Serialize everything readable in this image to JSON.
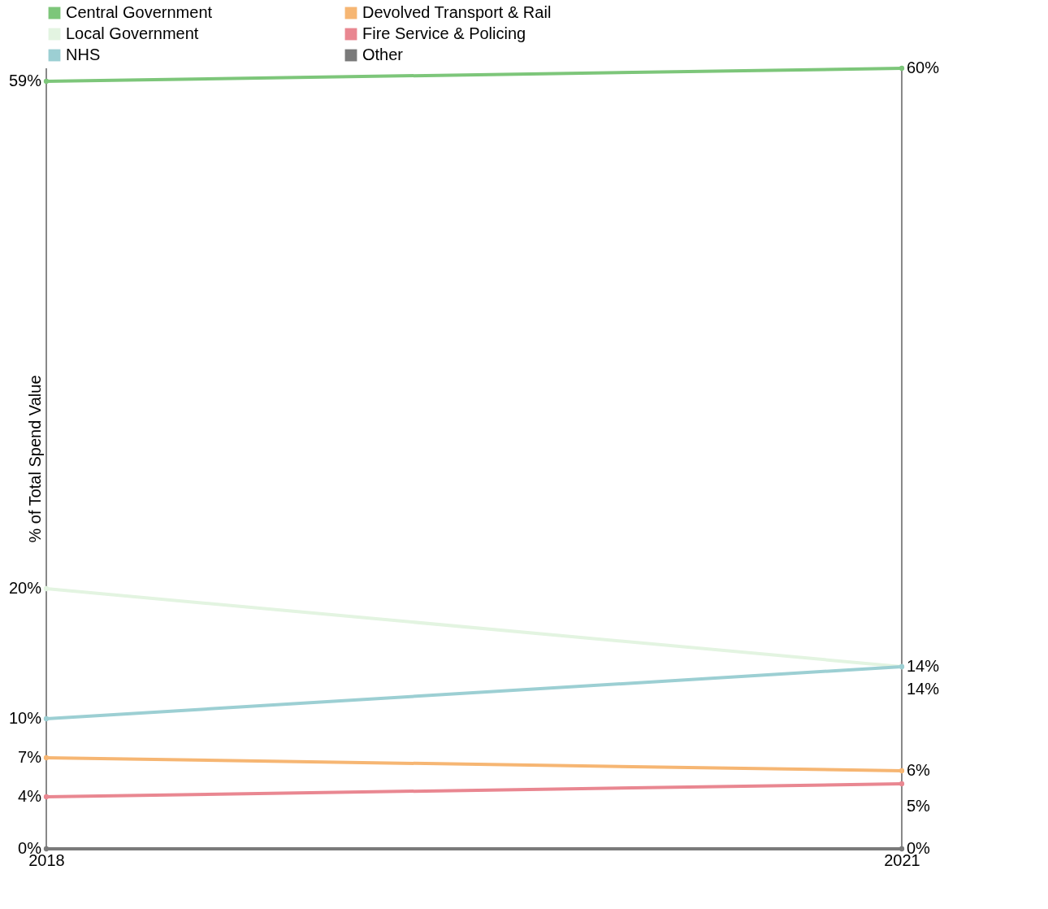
{
  "chart_data": {
    "type": "line",
    "categories": [
      "2018",
      "2021"
    ],
    "ylabel": "% of Total Spend Value",
    "tick_labels": "x",
    "ref_lines": [
      {
        "axis": "x",
        "value": "2018",
        "color": "#888888"
      },
      {
        "axis": "x",
        "value": "2021",
        "color": "#888888"
      }
    ],
    "legend": "top",
    "marker": "circle",
    "series": [
      {
        "name": "Central Government",
        "color": "#7dc67a",
        "values": [
          59,
          60
        ],
        "value_labels": [
          "59%",
          "60%"
        ]
      },
      {
        "name": "Local Government",
        "color": "#e3f4e1",
        "values": [
          20,
          14
        ],
        "value_labels": [
          "20%",
          "14%"
        ]
      },
      {
        "name": "NHS",
        "color": "#9ccfd3",
        "values": [
          10,
          14
        ],
        "value_labels": [
          "10%",
          "14%"
        ]
      },
      {
        "name": "Devolved Transport & Rail",
        "color": "#f6b673",
        "values": [
          7,
          6
        ],
        "value_labels": [
          "7%",
          "6%"
        ]
      },
      {
        "name": "Fire Service & Policing",
        "color": "#e98791",
        "values": [
          4,
          5
        ],
        "value_labels": [
          "4%",
          "5%"
        ]
      },
      {
        "name": "Other",
        "color": "#7a7a7a",
        "values": [
          0,
          0
        ],
        "value_labels": [
          "0%",
          "0%"
        ]
      }
    ]
  }
}
